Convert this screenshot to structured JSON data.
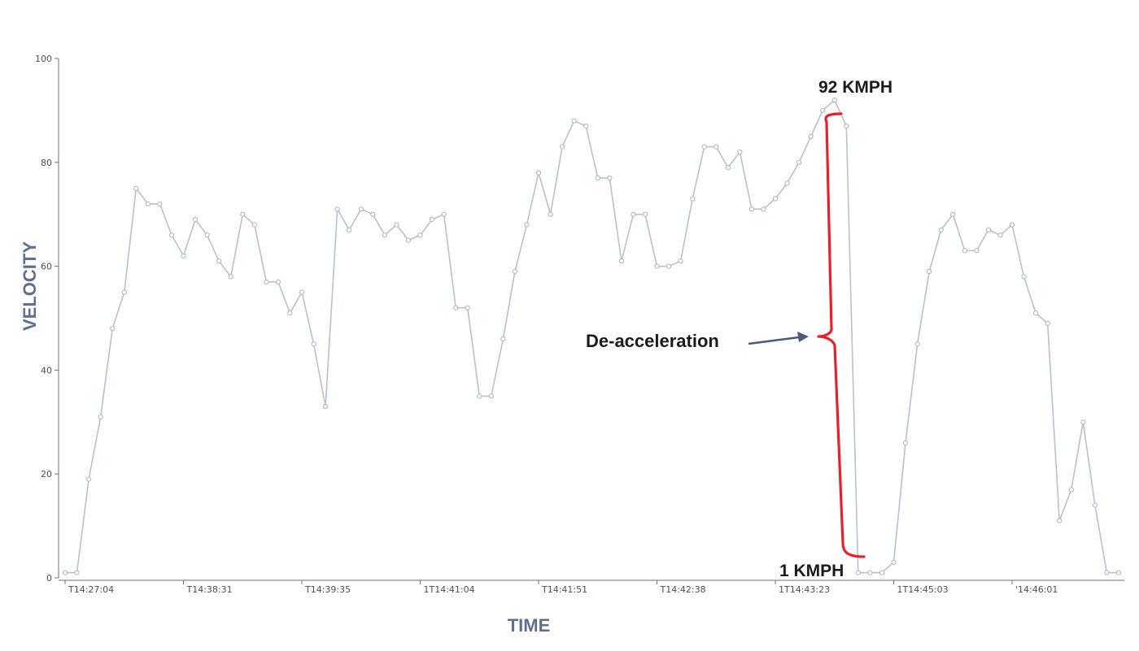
{
  "chart_data": {
    "type": "line",
    "title": "",
    "xlabel": "TIME",
    "ylabel": "VELOCITY",
    "ylim": [
      0,
      100
    ],
    "yticks": [
      0,
      20,
      40,
      60,
      80,
      100
    ],
    "ytick_labels": [
      "0",
      "20",
      "40",
      "60",
      "80",
      "100"
    ],
    "xtick_labels": [
      "T14:27:04",
      "T14:38:31",
      "T14:39:35",
      "1T14:41:04",
      "T14:41:51",
      "T14:42:38",
      "1T14:43:23",
      "1T14:45:03",
      "'14:46:01"
    ],
    "xtick_index": [
      0,
      10,
      20,
      30,
      40,
      50,
      60,
      70,
      80
    ],
    "grid": false,
    "series": [
      {
        "values": [
          1,
          1,
          19,
          31,
          48,
          55,
          75,
          72,
          72,
          66,
          62,
          69,
          66,
          61,
          58,
          70,
          68,
          57,
          57,
          51,
          55,
          45,
          33,
          71,
          67,
          71,
          70,
          66,
          68,
          65,
          66,
          69,
          70,
          52,
          52,
          35,
          35,
          46,
          59,
          68,
          78,
          70,
          83,
          88,
          87,
          77,
          77,
          61,
          70,
          70,
          60,
          60,
          61,
          73,
          83,
          83,
          79,
          82,
          71,
          71,
          73,
          76,
          80,
          85,
          90,
          92,
          87,
          1,
          1,
          1,
          3,
          26,
          45,
          59,
          67,
          70,
          63,
          63,
          67,
          66,
          68,
          58,
          51,
          49,
          11,
          17,
          30,
          14,
          1,
          1
        ]
      }
    ],
    "annotations": [
      {
        "text": "92 KMPH"
      },
      {
        "text": "1 KMPH"
      },
      {
        "text": "De-acceleration"
      }
    ],
    "bracket": {
      "from_value": 92,
      "to_value": 1,
      "start_index": 65,
      "end_index": 67
    },
    "colors": {
      "line": "#b7c1cf",
      "marker": "#aab4c2",
      "bracket": "#e8202a",
      "arrow": "#4a5b78",
      "axis_title": "#5f6f8f"
    }
  }
}
